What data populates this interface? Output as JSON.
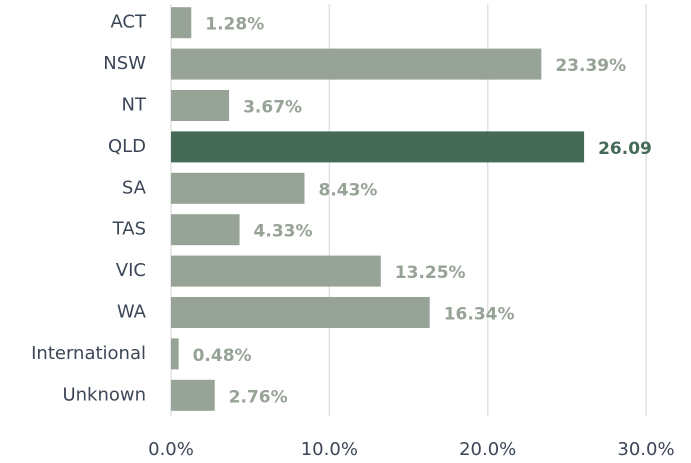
{
  "chart_data": {
    "type": "barh",
    "categories": [
      "ACT",
      "NSW",
      "NT",
      "QLD",
      "SA",
      "TAS",
      "VIC",
      "WA",
      "International",
      "Unknown"
    ],
    "values": [
      1.28,
      23.39,
      3.67,
      26.09,
      8.43,
      4.33,
      13.25,
      16.34,
      0.48,
      2.76
    ],
    "value_labels": [
      "1.28%",
      "23.39%",
      "3.67%",
      "26.09",
      "8.43%",
      "4.33%",
      "13.25%",
      "16.34%",
      "0.48%",
      "2.76%"
    ],
    "colors": [
      "#97a396",
      "#97a396",
      "#97a396",
      "#456b58",
      "#97a396",
      "#97a396",
      "#97a396",
      "#97a396",
      "#97a396",
      "#97a396"
    ],
    "xlim": [
      0,
      30
    ],
    "xticks": [
      {
        "value": 0,
        "label": "0.0%"
      },
      {
        "value": 10,
        "label": "10.0%"
      },
      {
        "value": 20,
        "label": "20.0%"
      },
      {
        "value": 30,
        "label": "30.0%"
      }
    ],
    "grid": true
  }
}
